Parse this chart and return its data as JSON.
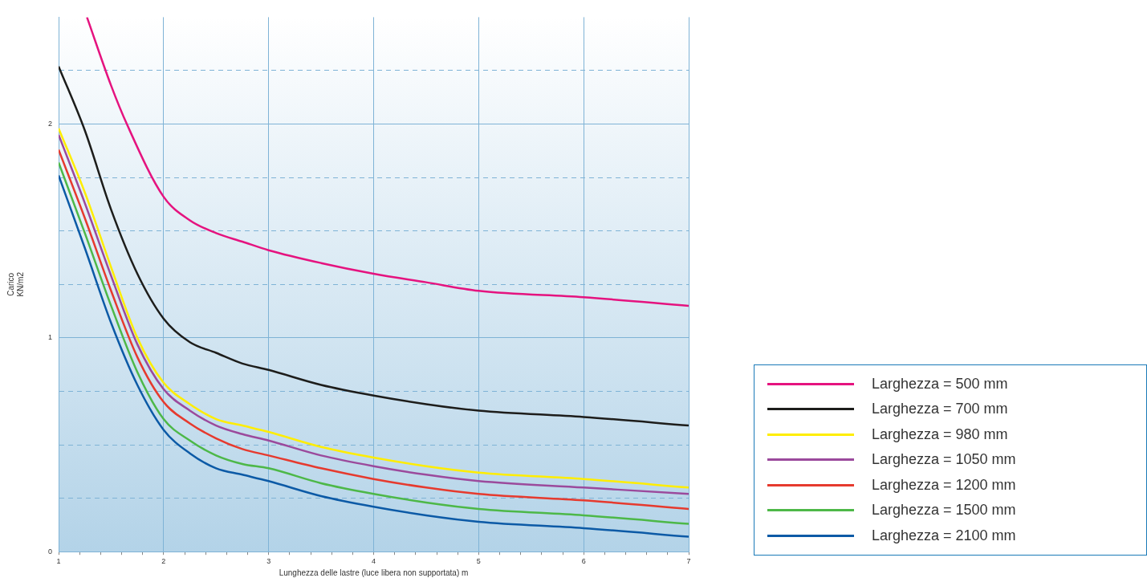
{
  "chart_data": {
    "type": "line",
    "xlabel": "Lunghezza delle lastre (luce libera non supportata) m",
    "ylabel": "Carico KN/m2",
    "xlim": [
      1,
      7
    ],
    "xticks": [
      1,
      {
        "value": 1.2,
        "label": null
      },
      {
        "value": 1.4,
        "label": null
      },
      {
        "value": 1.6,
        "label": null
      },
      {
        "value": 1.8,
        "label": null
      },
      2,
      {
        "value": 2.2,
        "label": null
      },
      {
        "value": 2.4,
        "label": null
      },
      {
        "value": 2.6,
        "label": null
      },
      {
        "value": 2.8,
        "label": null
      },
      3,
      {
        "value": 3.2,
        "label": null
      },
      {
        "value": 3.4,
        "label": null
      },
      {
        "value": 3.6,
        "label": null
      },
      {
        "value": 3.8,
        "label": null
      },
      4,
      {
        "value": 4.2,
        "label": null
      },
      {
        "value": 4.4,
        "label": null
      },
      {
        "value": 4.6,
        "label": null
      },
      {
        "value": 4.8,
        "label": null
      },
      5,
      {
        "value": 5.2,
        "label": null
      },
      {
        "value": 5.4,
        "label": null
      },
      {
        "value": 5.6,
        "label": null
      },
      {
        "value": 5.8,
        "label": null
      },
      6,
      {
        "value": 6.2,
        "label": null
      },
      {
        "value": 6.4,
        "label": null
      },
      {
        "value": 6.6,
        "label": null
      },
      {
        "value": 6.8,
        "label": null
      },
      7
    ],
    "ylim": [
      0,
      2.5
    ],
    "yticks": [
      0,
      {
        "value": 0.25,
        "label": null
      },
      {
        "value": 0.5,
        "label": null
      },
      {
        "value": 0.75,
        "label": null
      },
      1,
      {
        "value": 1.25,
        "label": null
      },
      {
        "value": 1.5,
        "label": null
      },
      {
        "value": 1.75,
        "label": null
      },
      2,
      {
        "value": 2.25,
        "label": null
      }
    ],
    "grid": true,
    "legend": "bottom right",
    "line_style": "solid",
    "marker": "none",
    "series": [
      {
        "name": "Larghezza = 500 mm",
        "color": "#e5137f",
        "x": [
          1.27,
          1.5,
          1.65,
          2,
          2.25,
          2.5,
          2.75,
          3,
          3.5,
          4,
          4.5,
          5,
          6,
          7
        ],
        "values": [
          2.5,
          2.18,
          2.0,
          1.66,
          1.55,
          1.49,
          1.45,
          1.41,
          1.35,
          1.3,
          1.26,
          1.22,
          1.19,
          1.15
        ]
      },
      {
        "name": "Larghezza = 700 mm",
        "color": "#1d1d1b",
        "x": [
          1,
          1.25,
          1.5,
          1.75,
          2,
          2.25,
          2.5,
          2.75,
          3,
          3.5,
          4,
          4.5,
          5,
          6,
          7
        ],
        "values": [
          2.27,
          1.97,
          1.6,
          1.3,
          1.09,
          0.98,
          0.93,
          0.88,
          0.85,
          0.78,
          0.73,
          0.69,
          0.66,
          0.63,
          0.59
        ]
      },
      {
        "name": "Larghezza = 980 mm",
        "color": "#ffed00",
        "x": [
          1,
          1.25,
          1.5,
          1.75,
          2,
          2.25,
          2.5,
          2.75,
          3,
          3.5,
          4,
          4.5,
          5,
          6,
          7
        ],
        "values": [
          1.98,
          1.68,
          1.33,
          1.0,
          0.79,
          0.69,
          0.62,
          0.59,
          0.56,
          0.49,
          0.44,
          0.4,
          0.37,
          0.34,
          0.3
        ]
      },
      {
        "name": "Larghezza = 1050 mm",
        "color": "#9b4a9c",
        "x": [
          1,
          1.25,
          1.5,
          1.75,
          2,
          2.25,
          2.5,
          2.75,
          3,
          3.5,
          4,
          4.5,
          5,
          6,
          7
        ],
        "values": [
          1.95,
          1.63,
          1.29,
          0.97,
          0.76,
          0.66,
          0.59,
          0.55,
          0.52,
          0.45,
          0.4,
          0.36,
          0.33,
          0.3,
          0.27
        ]
      },
      {
        "name": "Larghezza = 1200 mm",
        "color": "#e63a2e",
        "x": [
          1,
          1.25,
          1.5,
          1.75,
          2,
          2.25,
          2.5,
          2.75,
          3,
          3.5,
          4,
          4.5,
          5,
          6,
          7
        ],
        "values": [
          1.88,
          1.56,
          1.22,
          0.91,
          0.7,
          0.6,
          0.53,
          0.48,
          0.45,
          0.39,
          0.34,
          0.3,
          0.27,
          0.24,
          0.2
        ]
      },
      {
        "name": "Larghezza = 1500 mm",
        "color": "#4db848",
        "x": [
          1,
          1.25,
          1.5,
          1.75,
          2,
          2.25,
          2.5,
          2.75,
          3,
          3.5,
          4,
          4.5,
          5,
          6,
          7
        ],
        "values": [
          1.82,
          1.49,
          1.15,
          0.84,
          0.62,
          0.52,
          0.45,
          0.41,
          0.39,
          0.32,
          0.27,
          0.23,
          0.2,
          0.17,
          0.13
        ]
      },
      {
        "name": "Larghezza = 2100 mm",
        "color": "#0c5aa6",
        "x": [
          1,
          1.25,
          1.5,
          1.75,
          2,
          2.25,
          2.5,
          2.75,
          3,
          3.5,
          4,
          4.5,
          5,
          6,
          7
        ],
        "values": [
          1.76,
          1.42,
          1.07,
          0.78,
          0.57,
          0.46,
          0.39,
          0.36,
          0.33,
          0.26,
          0.21,
          0.17,
          0.14,
          0.11,
          0.07
        ]
      }
    ]
  }
}
